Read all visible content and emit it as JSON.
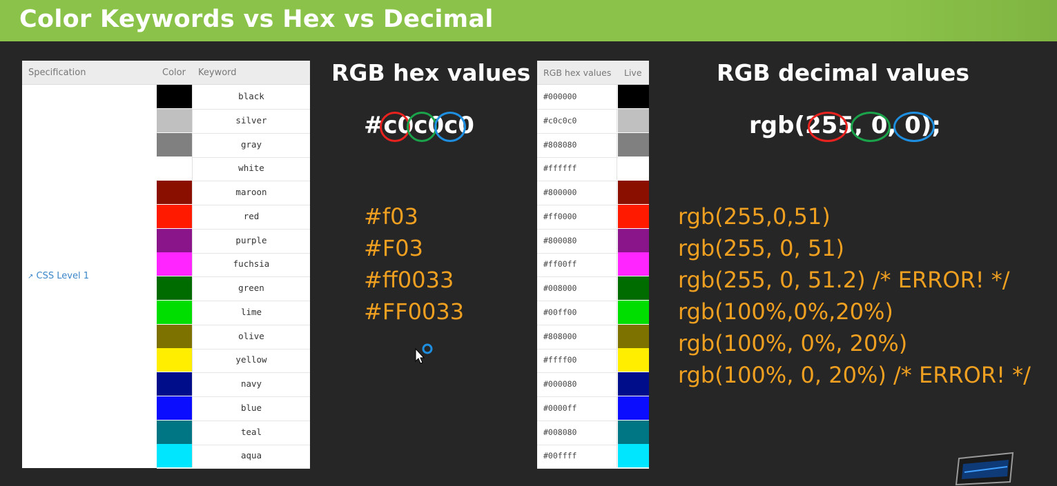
{
  "title": "Color Keywords vs Hex vs Decimal",
  "keyword_table": {
    "headers": {
      "specification": "Specification",
      "color": "Color",
      "keyword": "Keyword"
    },
    "spec_link": "CSS Level 1",
    "rows": [
      {
        "keyword": "black",
        "color": "#000000"
      },
      {
        "keyword": "silver",
        "color": "#c0c0c0"
      },
      {
        "keyword": "gray",
        "color": "#808080"
      },
      {
        "keyword": "white",
        "color": "#ffffff"
      },
      {
        "keyword": "maroon",
        "color": "#8b0f00"
      },
      {
        "keyword": "red",
        "color": "#ff1a00"
      },
      {
        "keyword": "purple",
        "color": "#8a1489"
      },
      {
        "keyword": "fuchsia",
        "color": "#ff25ff"
      },
      {
        "keyword": "green",
        "color": "#006c00"
      },
      {
        "keyword": "lime",
        "color": "#00de00"
      },
      {
        "keyword": "olive",
        "color": "#7d7100"
      },
      {
        "keyword": "yellow",
        "color": "#ffee00"
      },
      {
        "keyword": "navy",
        "color": "#000d8a"
      },
      {
        "keyword": "blue",
        "color": "#0b0dff"
      },
      {
        "keyword": "teal",
        "color": "#007584"
      },
      {
        "keyword": "aqua",
        "color": "#00e6ff"
      }
    ]
  },
  "hex_section": {
    "heading": "RGB hex values",
    "example": {
      "prefix": "#",
      "parts": [
        "c0",
        "c0",
        "c0"
      ]
    },
    "ring_colors": [
      "#e8221e",
      "#1aa34a",
      "#1e8fe0"
    ],
    "lines": [
      "#f03",
      "#F03",
      "#ff0033",
      "#FF0033"
    ]
  },
  "hex_table": {
    "headers": {
      "rgb": "RGB hex values",
      "live": "Live"
    },
    "rows": [
      {
        "code": "#000000",
        "color": "#000000"
      },
      {
        "code": "#c0c0c0",
        "color": "#c0c0c0"
      },
      {
        "code": "#808080",
        "color": "#808080"
      },
      {
        "code": "#ffffff",
        "color": "#ffffff"
      },
      {
        "code": "#800000",
        "color": "#8b0f00"
      },
      {
        "code": "#ff0000",
        "color": "#ff1a00"
      },
      {
        "code": "#800080",
        "color": "#8a1489"
      },
      {
        "code": "#ff00ff",
        "color": "#ff25ff"
      },
      {
        "code": "#008000",
        "color": "#006c00"
      },
      {
        "code": "#00ff00",
        "color": "#00de00"
      },
      {
        "code": "#808000",
        "color": "#7d7100"
      },
      {
        "code": "#ffff00",
        "color": "#ffee00"
      },
      {
        "code": "#000080",
        "color": "#000d8a"
      },
      {
        "code": "#0000ff",
        "color": "#0b0dff"
      },
      {
        "code": "#008080",
        "color": "#007584"
      },
      {
        "code": "#00ffff",
        "color": "#00e6ff"
      }
    ]
  },
  "decimal_section": {
    "heading": "RGB decimal values",
    "example": "rgb(255, 0, 0);",
    "lines": [
      "rgb(255,0,51)",
      "rgb(255, 0, 51)",
      "rgb(255, 0, 51.2) /* ERROR! */",
      "rgb(100%,0%,20%)",
      "rgb(100%, 0%, 20%)",
      "rgb(100%, 0, 20%) /* ERROR! */"
    ]
  },
  "theme": {
    "accent_green": "#8bc34a",
    "text_orange": "#f0a020",
    "background": "#262626"
  }
}
